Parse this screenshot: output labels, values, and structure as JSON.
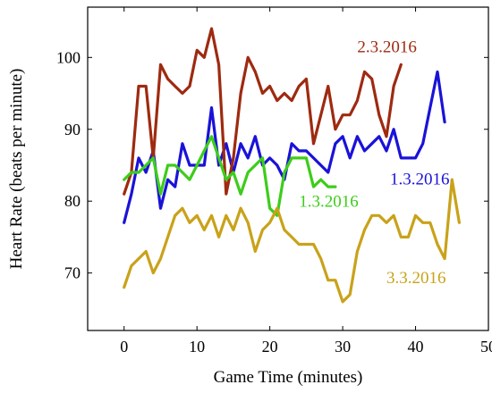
{
  "chart_data": {
    "type": "line",
    "xlabel": "Game Time (minutes)",
    "ylabel": "Heart Rate (beats per minute)",
    "xlim": [
      -5,
      50
    ],
    "ylim": [
      62,
      107
    ],
    "xticks": [
      0,
      10,
      20,
      30,
      40,
      50
    ],
    "yticks": [
      70,
      80,
      90,
      100
    ],
    "grid": false,
    "legend": "inline labels",
    "series": [
      {
        "name": "1.3.2016",
        "color": "#1a12d8",
        "x": [
          0,
          1,
          2,
          3,
          4,
          5,
          6,
          7,
          8,
          9,
          10,
          11,
          12,
          13,
          14,
          15,
          16,
          17,
          18,
          19,
          20,
          21,
          22,
          23,
          24,
          25,
          26,
          27,
          28,
          29,
          30,
          31,
          32,
          33,
          34,
          35,
          36,
          37,
          38,
          39,
          40,
          41,
          42,
          43,
          44
        ],
        "y": [
          77,
          81,
          86,
          84,
          87,
          79,
          83,
          82,
          88,
          85,
          85,
          85,
          93,
          85,
          88,
          84,
          88,
          86,
          89,
          85,
          86,
          85,
          83,
          88,
          87,
          87,
          86,
          85,
          84,
          88,
          89,
          86,
          89,
          87,
          88,
          89,
          87,
          90,
          86,
          86,
          86,
          88,
          93,
          98,
          91
        ]
      },
      {
        "name": "2.3.2016",
        "color": "#9e2a10",
        "x": [
          0,
          1,
          2,
          3,
          4,
          5,
          6,
          7,
          8,
          9,
          10,
          11,
          12,
          13,
          14,
          15,
          16,
          17,
          18,
          19,
          20,
          21,
          22,
          23,
          24,
          25,
          26,
          27,
          28,
          29,
          30,
          31,
          32,
          33,
          34,
          35,
          36,
          37,
          38
        ],
        "y": [
          81,
          84,
          96,
          96,
          86,
          99,
          97,
          96,
          95,
          96,
          101,
          100,
          104,
          99,
          81,
          86,
          95,
          100,
          98,
          95,
          96,
          94,
          95,
          94,
          96,
          97,
          88,
          92,
          96,
          90,
          92,
          92,
          94,
          98,
          97,
          92,
          89,
          96,
          99
        ]
      },
      {
        "name": "1.3.2016",
        "color": "#3ccd1a",
        "x": [
          0,
          1,
          2,
          3,
          4,
          5,
          6,
          7,
          8,
          9,
          10,
          11,
          12,
          13,
          14,
          15,
          16,
          17,
          18,
          19,
          20,
          21,
          22,
          23,
          24,
          25,
          26,
          27,
          28,
          29
        ],
        "y": [
          83,
          84,
          84,
          85,
          86,
          81,
          85,
          85,
          84,
          83,
          85,
          87,
          89,
          86,
          83,
          84,
          81,
          84,
          85,
          86,
          79,
          78,
          84,
          86,
          86,
          86,
          82,
          83,
          82,
          82
        ]
      },
      {
        "name": "3.3.2016",
        "color": "#c9a21a",
        "x": [
          0,
          1,
          2,
          3,
          4,
          5,
          6,
          7,
          8,
          9,
          10,
          11,
          12,
          13,
          14,
          15,
          16,
          17,
          18,
          19,
          20,
          21,
          22,
          23,
          24,
          25,
          26,
          27,
          28,
          29,
          30,
          31,
          32,
          33,
          34,
          35,
          36,
          37,
          38,
          39,
          40,
          41,
          42,
          43,
          44,
          45,
          46
        ],
        "y": [
          68,
          71,
          72,
          73,
          70,
          72,
          75,
          78,
          79,
          77,
          78,
          76,
          78,
          75,
          78,
          76,
          79,
          77,
          73,
          76,
          77,
          79,
          76,
          75,
          74,
          74,
          74,
          72,
          69,
          69,
          66,
          67,
          73,
          76,
          78,
          78,
          77,
          78,
          75,
          75,
          78,
          77,
          77,
          74,
          72,
          83,
          77
        ]
      }
    ]
  }
}
